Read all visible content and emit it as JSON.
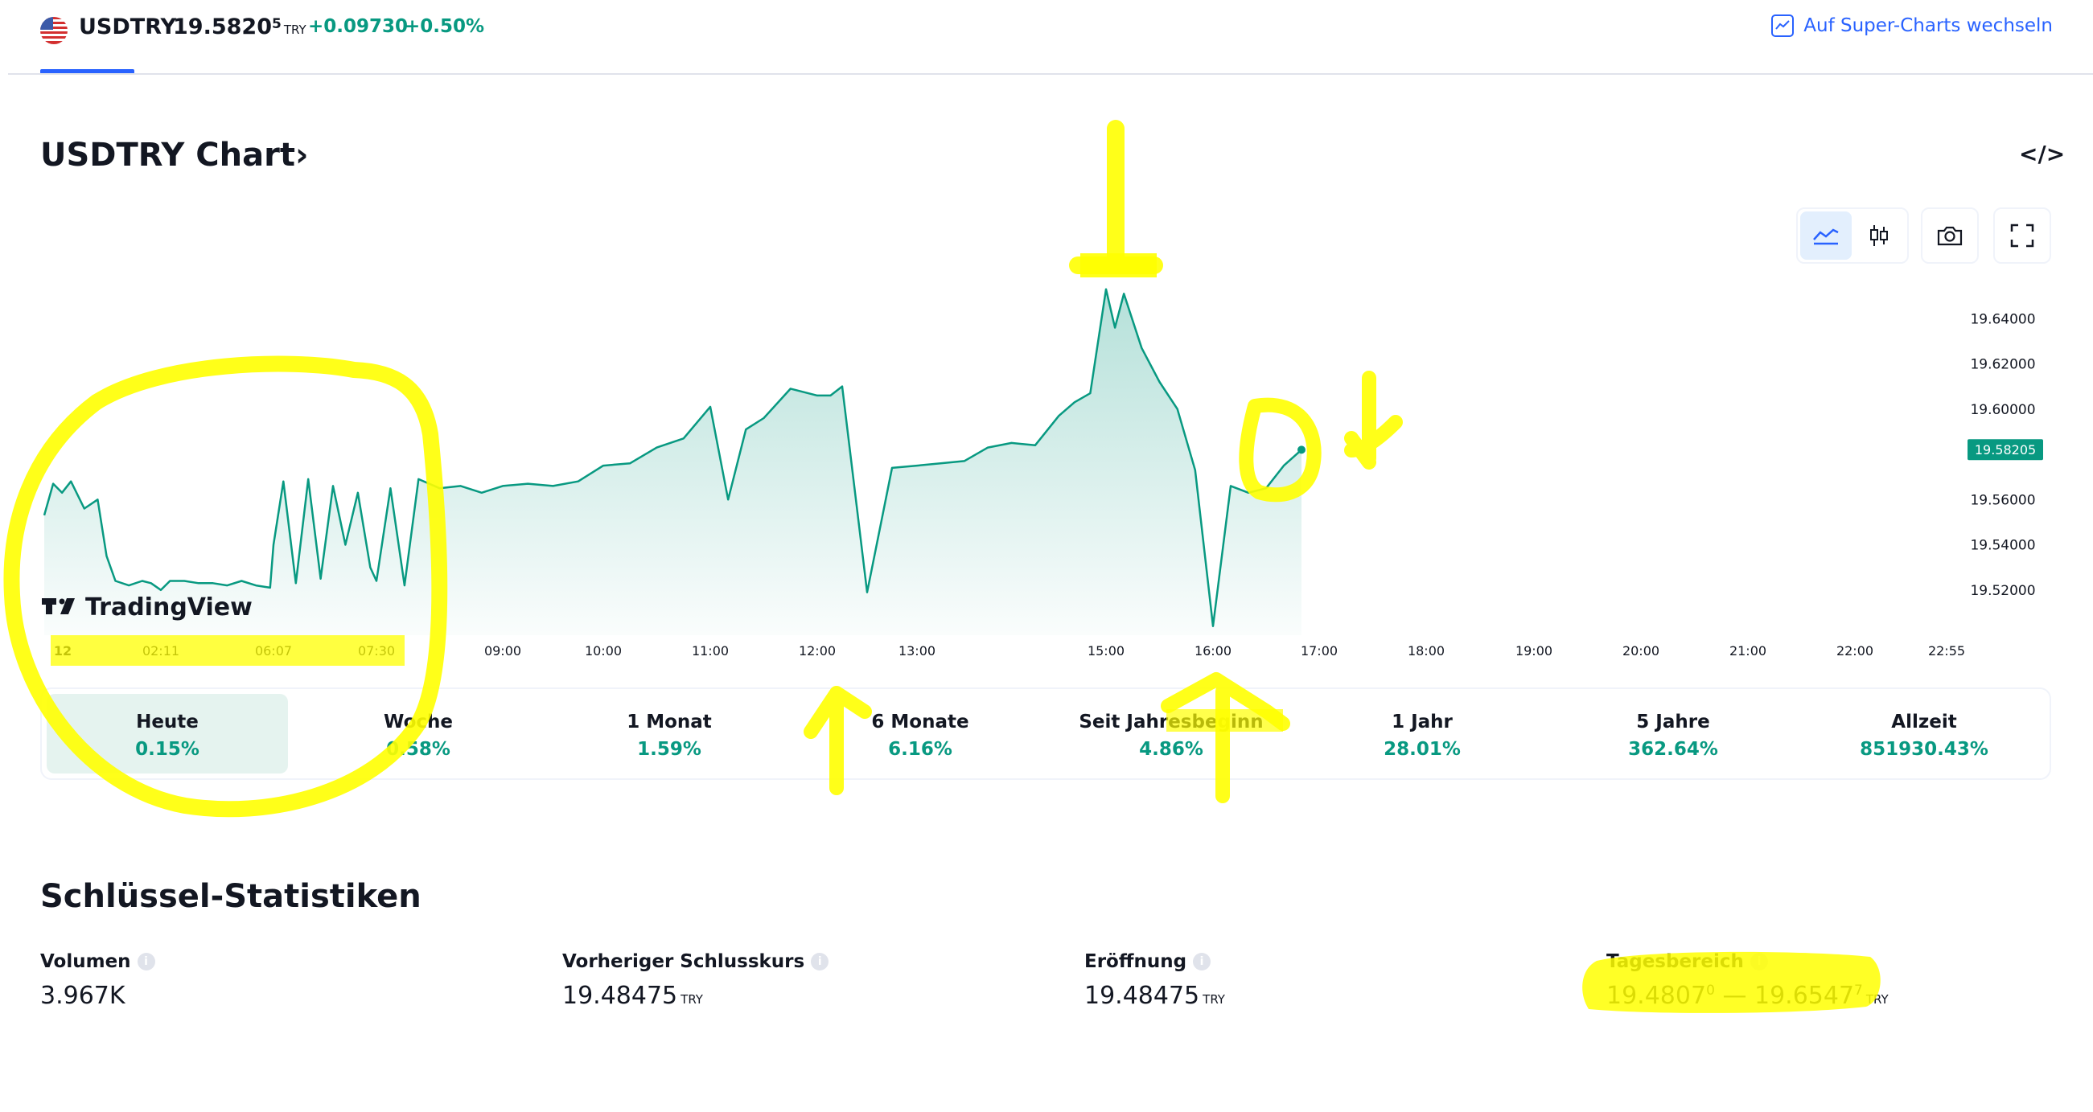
{
  "header": {
    "symbol": "USDTRY",
    "price_main": "19.5820",
    "price_sup": "5",
    "price_currency": "TRY",
    "change": "+0.09730",
    "change_percent": "+0.50%",
    "super_charts_link": "Auf Super-Charts wechseln"
  },
  "chart_section": {
    "title": "USDTRY Chart",
    "title_chevron": "›",
    "embed_icon": "</>",
    "brand": "TradingView",
    "toolbar_icons": [
      "area-chart-icon",
      "candlestick-icon",
      "camera-icon",
      "fullscreen-icon"
    ]
  },
  "chart_data": {
    "type": "area",
    "x_tick_labels": [
      "12",
      "02:11",
      "06:07",
      "07:30",
      "09:00",
      "10:00",
      "11:00",
      "12:00",
      "13:00",
      "15:00",
      "16:00",
      "17:00",
      "18:00",
      "19:00",
      "20:00",
      "21:00",
      "22:00",
      "22:55"
    ],
    "y_tick_labels": [
      "19.64000",
      "19.62000",
      "19.60000",
      "19.56000",
      "19.54000",
      "19.52000"
    ],
    "ylim": [
      19.5,
      19.66
    ],
    "last_price_label": "19.58205",
    "last_price": 19.58205,
    "series": [
      {
        "x": [
          "00:00",
          "00:10",
          "00:20",
          "00:30",
          "00:45",
          "01:00",
          "01:10",
          "01:20",
          "01:35",
          "01:50",
          "02:00",
          "02:11",
          "02:30",
          "03:00",
          "03:30",
          "04:00",
          "04:30",
          "05:00",
          "05:30",
          "06:00",
          "06:07",
          "06:15",
          "06:25",
          "06:35",
          "06:45",
          "06:55",
          "07:05",
          "07:15",
          "07:25",
          "07:30",
          "07:40",
          "07:50",
          "08:00",
          "08:15",
          "08:30",
          "08:45",
          "09:00",
          "09:15",
          "09:30",
          "09:45",
          "10:00",
          "10:15",
          "10:30",
          "10:45",
          "11:00",
          "11:10",
          "11:20",
          "11:30",
          "11:45",
          "12:00",
          "12:08",
          "12:15",
          "12:30",
          "12:45",
          "13:00",
          "13:15",
          "13:30",
          "13:45",
          "14:00",
          "14:15",
          "14:30",
          "14:40",
          "14:50",
          "15:00",
          "15:05",
          "15:10",
          "15:20",
          "15:30",
          "15:40",
          "15:50",
          "16:00",
          "16:10",
          "16:20",
          "16:30",
          "16:40",
          "16:50"
        ],
        "values": [
          19.553,
          19.567,
          19.563,
          19.568,
          19.556,
          19.56,
          19.535,
          19.524,
          19.522,
          19.524,
          19.523,
          19.52,
          19.524,
          19.524,
          19.523,
          19.523,
          19.522,
          19.524,
          19.522,
          19.521,
          19.54,
          19.568,
          19.523,
          19.569,
          19.525,
          19.566,
          19.54,
          19.563,
          19.53,
          19.524,
          19.565,
          19.522,
          19.569,
          19.565,
          19.566,
          19.563,
          19.566,
          19.567,
          19.566,
          19.568,
          19.575,
          19.576,
          19.583,
          19.587,
          19.601,
          19.56,
          19.591,
          19.596,
          19.609,
          19.606,
          19.606,
          19.61,
          19.519,
          19.574,
          19.575,
          19.576,
          19.577,
          19.583,
          19.585,
          19.584,
          19.597,
          19.603,
          19.607,
          19.653,
          19.636,
          19.651,
          19.627,
          19.612,
          19.6,
          19.573,
          19.504,
          19.566,
          19.563,
          19.565,
          19.575,
          19.582
        ]
      }
    ]
  },
  "periods": [
    {
      "label": "Heute",
      "value": "0.15%"
    },
    {
      "label": "Woche",
      "value": "0.58%"
    },
    {
      "label": "1 Monat",
      "value": "1.59%"
    },
    {
      "label": "6 Monate",
      "value": "6.16%"
    },
    {
      "label": "Seit Jahresbeginn",
      "value": "4.86%"
    },
    {
      "label": "1 Jahr",
      "value": "28.01%"
    },
    {
      "label": "5 Jahre",
      "value": "362.64%"
    },
    {
      "label": "Allzeit",
      "value": "851930.43%"
    }
  ],
  "key_stats": {
    "title": "Schlüssel-Statistiken",
    "volume": {
      "label": "Volumen",
      "value": "3.967K"
    },
    "prev_close": {
      "label": "Vorheriger Schlusskurs",
      "value": "19.48475",
      "currency": "TRY"
    },
    "open": {
      "label": "Eröffnung",
      "value": "19.48475",
      "currency": "TRY"
    },
    "day_range": {
      "label": "Tagesbereich",
      "low": "19.4807",
      "low_sup": "0",
      "separator": "—",
      "high": "19.6547",
      "high_sup": "7",
      "currency": "TRY"
    }
  },
  "colors": {
    "accent": "#2962ff",
    "positive": "#089981",
    "highlighter": "#ffff00",
    "text": "#131722"
  }
}
